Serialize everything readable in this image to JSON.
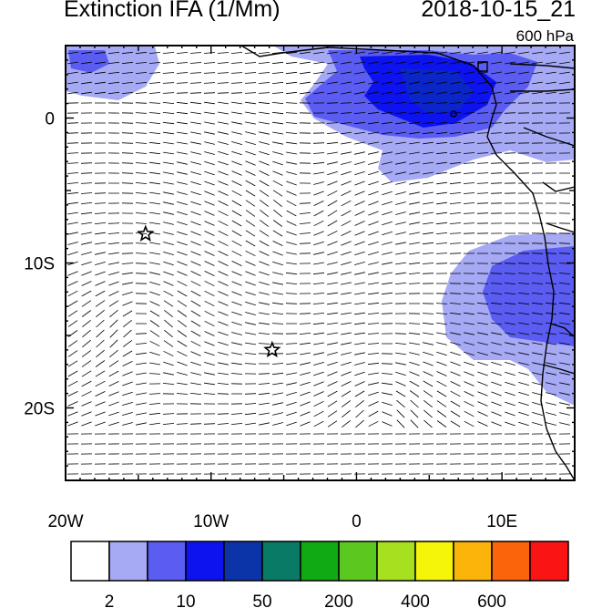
{
  "title": "Extinction IFA (1/Mm)",
  "timestamp": "2018-10-15_21",
  "level": "600 hPa",
  "map": {
    "x_ticks": [
      {
        "label": "20W",
        "value": -20
      },
      {
        "label": "10W",
        "value": -10
      },
      {
        "label": "0",
        "value": 0
      },
      {
        "label": "10E",
        "value": 10
      }
    ],
    "y_ticks": [
      {
        "label": "0",
        "value": 0
      },
      {
        "label": "10S",
        "value": -10
      },
      {
        "label": "20S",
        "value": -20
      }
    ],
    "lon_range": [
      -20,
      15
    ],
    "lat_range": [
      -25,
      5
    ],
    "markers": [
      {
        "type": "star",
        "lon": -14.5,
        "lat": -8
      },
      {
        "type": "star",
        "lon": -5.8,
        "lat": -16
      }
    ]
  },
  "colorbar": {
    "colors": [
      "#ffffff",
      "#a6aaf5",
      "#5a5cf2",
      "#0c13ef",
      "#0a34a8",
      "#087a66",
      "#0faa14",
      "#5ac81e",
      "#a6e01e",
      "#f5f50a",
      "#fbb40a",
      "#fb640a",
      "#fb1414"
    ],
    "labels": [
      {
        "text": "2",
        "after_box": 1
      },
      {
        "text": "10",
        "after_box": 3
      },
      {
        "text": "50",
        "after_box": 5
      },
      {
        "text": "200",
        "after_box": 7
      },
      {
        "text": "400",
        "after_box": 9
      },
      {
        "text": "600",
        "after_box": 11
      }
    ]
  }
}
